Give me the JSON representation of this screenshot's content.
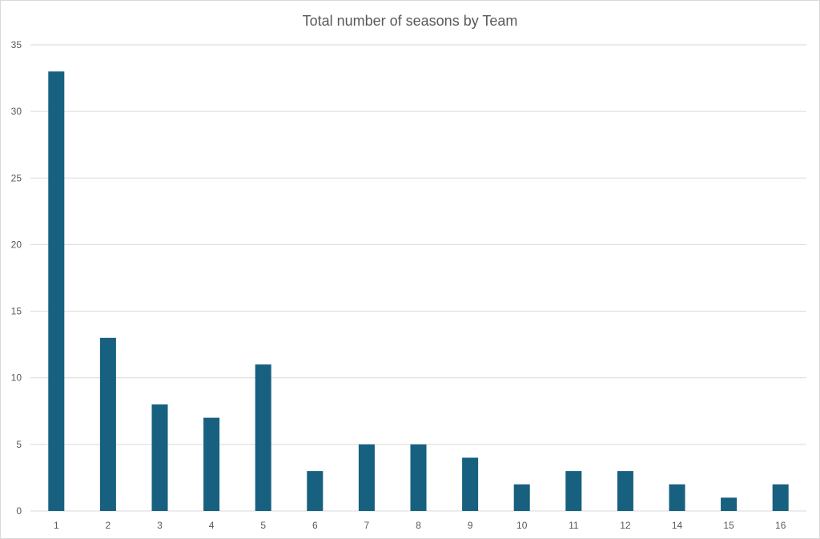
{
  "chart_data": {
    "type": "bar",
    "title": "Total number of seasons by Team",
    "xlabel": "",
    "ylabel": "",
    "categories": [
      "1",
      "2",
      "3",
      "4",
      "5",
      "6",
      "7",
      "8",
      "9",
      "10",
      "11",
      "12",
      "14",
      "15",
      "16"
    ],
    "values": [
      33,
      13,
      8,
      7,
      11,
      3,
      5,
      5,
      4,
      2,
      3,
      3,
      2,
      1,
      2
    ],
    "ylim": [
      0,
      35
    ],
    "yticks": [
      "0",
      "5",
      "10",
      "15",
      "20",
      "25",
      "30",
      "35"
    ],
    "grid": true,
    "legend": "none",
    "colors": {
      "bar": "#17607f",
      "grid": "#d9d9d9",
      "text": "#595959"
    }
  }
}
